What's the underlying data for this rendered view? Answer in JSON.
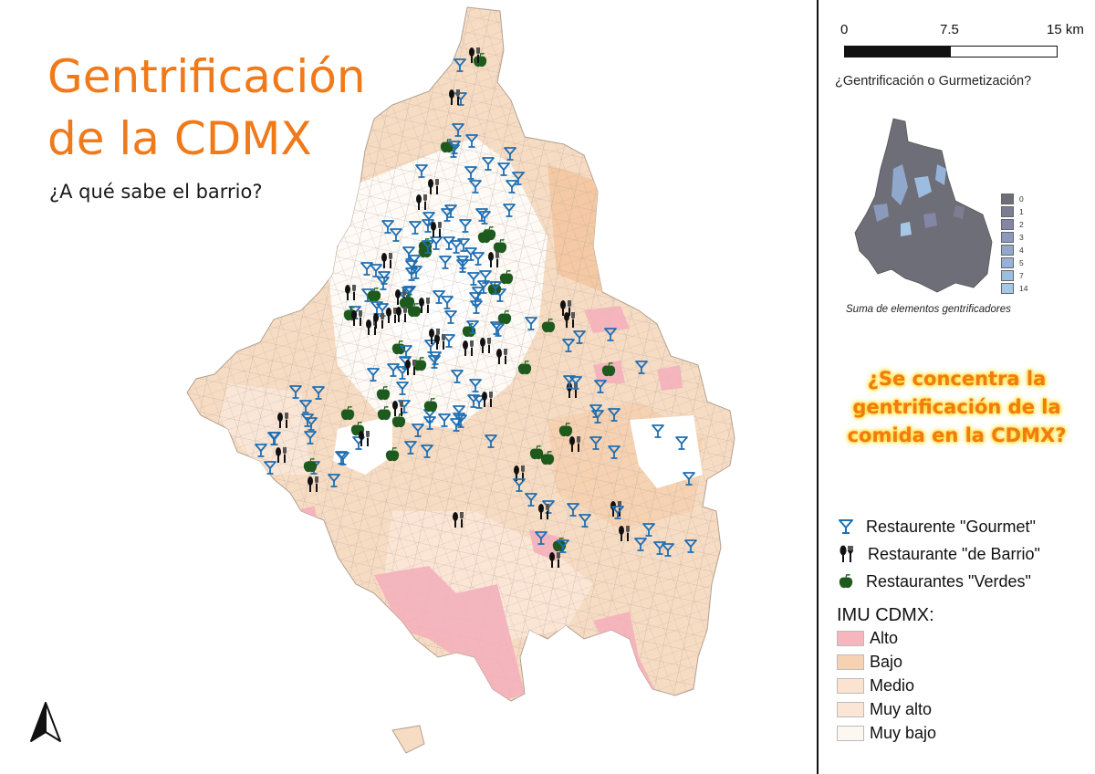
{
  "title": {
    "line1": "Gentrificación",
    "line2": "de la CDMX",
    "subtitle": "¿A qué sabe el barrio?"
  },
  "north_arrow_icon": "north-arrow-icon",
  "scale_bar": {
    "labels": [
      "0",
      "7.5",
      "15 km"
    ]
  },
  "inset": {
    "title": "¿Gentrificación o Gurmetización?",
    "caption": "Suma de elementos gentrificadores",
    "legend": [
      {
        "label": "0",
        "color": "#6e6e78"
      },
      {
        "label": "1",
        "color": "#7c7d92"
      },
      {
        "label": "2",
        "color": "#8486a8"
      },
      {
        "label": "3",
        "color": "#8b9abb"
      },
      {
        "label": "4",
        "color": "#8fa8cc"
      },
      {
        "label": "5",
        "color": "#95b3d8"
      },
      {
        "label": "7",
        "color": "#9cbde0"
      },
      {
        "label": "14",
        "color": "#a6c7e6"
      }
    ]
  },
  "question": {
    "line1": "¿Se concentra la",
    "line2": "gentrificación de la",
    "line3": "comida en la CDMX?"
  },
  "symbols_legend": [
    {
      "label": "Restaurente \"Gourmet\"",
      "icon": "cocktail-glass-icon",
      "color": "#1f6fb3"
    },
    {
      "label": "Restaurante \"de Barrio\"",
      "icon": "fork-knife-icon",
      "color": "#111111"
    },
    {
      "label": "Restaurantes \"Verdes\"",
      "icon": "green-apple-icon",
      "color": "#1e5a1e"
    }
  ],
  "imu_legend": {
    "title": "IMU CDMX:",
    "classes": [
      {
        "label": "Alto",
        "color": "#f5b6be"
      },
      {
        "label": "Bajo",
        "color": "#f6d2b2"
      },
      {
        "label": "Medio",
        "color": "#fbe3d0"
      },
      {
        "label": "Muy alto",
        "color": "#fbe6d6"
      },
      {
        "label": "Muy bajo",
        "color": "#fdf7f2"
      }
    ]
  },
  "colors": {
    "title_orange": "#f07a1a",
    "question_glow": "#ffd400",
    "gourmet_blue": "#1f6fb3",
    "barrio_black": "#111111",
    "verde_green": "#1e5a1e"
  }
}
